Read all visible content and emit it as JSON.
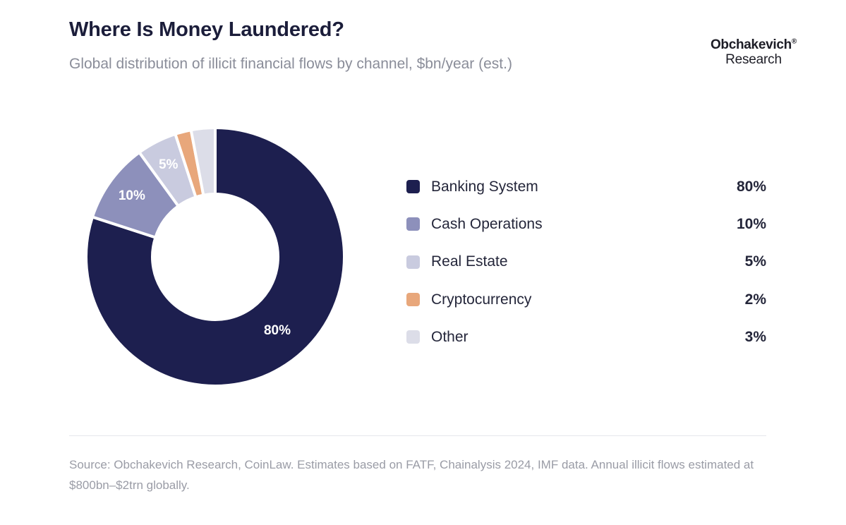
{
  "header": {
    "title": "Where Is Money Laundered?",
    "subtitle": "Global distribution of illicit financial flows by channel, $bn/year (est.)"
  },
  "brand": {
    "name": "Obchakevich",
    "mark": "®",
    "sub": "Research"
  },
  "chart_data": {
    "type": "pie",
    "variant": "donut",
    "title": "Where Is Money Laundered?",
    "unit": "%",
    "categories": [
      "Banking System",
      "Cash Operations",
      "Real Estate",
      "Cryptocurrency",
      "Other"
    ],
    "values": [
      80,
      10,
      5,
      2,
      3
    ],
    "colors": [
      "#1d1f4f",
      "#8d90bb",
      "#c9cbdf",
      "#e8a77b",
      "#dcdde8"
    ],
    "slice_labels": [
      "80%",
      "10%",
      "5%",
      "",
      ""
    ],
    "legend_values": [
      "80%",
      "10%",
      "5%",
      "2%",
      "3%"
    ],
    "legend_position": "right"
  },
  "footer": {
    "source": "Source: Obchakevich Research, CoinLaw. Estimates based on FATF, Chainalysis 2024, IMF data. Annual illicit flows estimated at $800bn–$2trn globally."
  }
}
